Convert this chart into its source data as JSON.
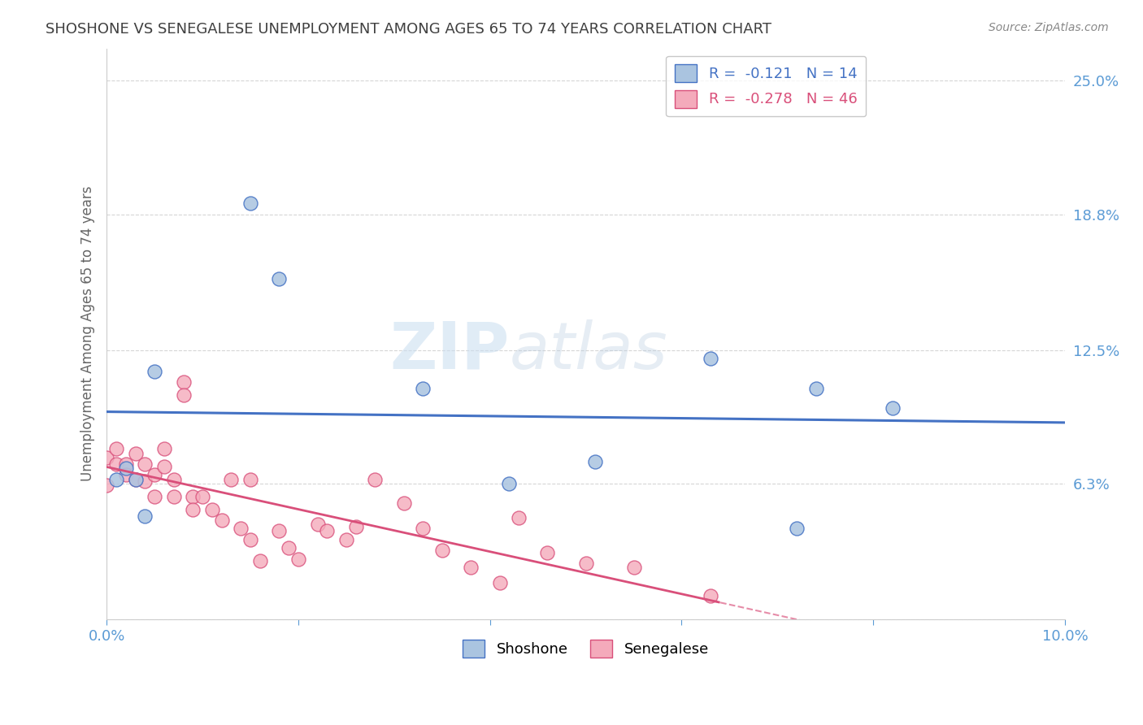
{
  "title": "SHOSHONE VS SENEGALESE UNEMPLOYMENT AMONG AGES 65 TO 74 YEARS CORRELATION CHART",
  "source": "Source: ZipAtlas.com",
  "ylabel": "Unemployment Among Ages 65 to 74 years",
  "xlim": [
    0.0,
    0.1
  ],
  "ylim": [
    0.0,
    0.265
  ],
  "xticks": [
    0.0,
    0.02,
    0.04,
    0.06,
    0.08,
    0.1
  ],
  "xticklabels": [
    "0.0%",
    "",
    "",
    "",
    "",
    "10.0%"
  ],
  "ytick_positions": [
    0.0,
    0.063,
    0.125,
    0.188,
    0.25
  ],
  "ytick_labels": [
    "",
    "6.3%",
    "12.5%",
    "18.8%",
    "25.0%"
  ],
  "shoshone_x": [
    0.002,
    0.015,
    0.018,
    0.005,
    0.042,
    0.033,
    0.063,
    0.074,
    0.082,
    0.051,
    0.003,
    0.001,
    0.004,
    0.072
  ],
  "shoshone_y": [
    0.07,
    0.193,
    0.158,
    0.115,
    0.063,
    0.107,
    0.121,
    0.107,
    0.098,
    0.073,
    0.065,
    0.065,
    0.048,
    0.042
  ],
  "senegalese_x": [
    0.0,
    0.001,
    0.001,
    0.002,
    0.002,
    0.003,
    0.003,
    0.004,
    0.004,
    0.005,
    0.005,
    0.006,
    0.006,
    0.007,
    0.007,
    0.008,
    0.008,
    0.009,
    0.009,
    0.01,
    0.011,
    0.012,
    0.013,
    0.014,
    0.015,
    0.015,
    0.016,
    0.018,
    0.019,
    0.02,
    0.022,
    0.023,
    0.025,
    0.026,
    0.028,
    0.031,
    0.033,
    0.035,
    0.038,
    0.041,
    0.043,
    0.046,
    0.05,
    0.055,
    0.063,
    0.0
  ],
  "senegalese_y": [
    0.075,
    0.079,
    0.072,
    0.072,
    0.067,
    0.065,
    0.077,
    0.072,
    0.064,
    0.067,
    0.057,
    0.079,
    0.071,
    0.065,
    0.057,
    0.11,
    0.104,
    0.057,
    0.051,
    0.057,
    0.051,
    0.046,
    0.065,
    0.042,
    0.037,
    0.065,
    0.027,
    0.041,
    0.033,
    0.028,
    0.044,
    0.041,
    0.037,
    0.043,
    0.065,
    0.054,
    0.042,
    0.032,
    0.024,
    0.017,
    0.047,
    0.031,
    0.026,
    0.024,
    0.011,
    0.062
  ],
  "shoshone_color": "#aac4e0",
  "senegalese_color": "#f4aabb",
  "shoshone_line_color": "#4472c4",
  "senegalese_line_color": "#d94f7a",
  "shoshone_R": -0.121,
  "shoshone_N": 14,
  "senegalese_R": -0.278,
  "senegalese_N": 46,
  "watermark_zip": "ZIP",
  "watermark_atlas": "atlas",
  "background_color": "#ffffff",
  "grid_color": "#cccccc",
  "axis_label_color": "#5b9bd5",
  "title_color": "#404040"
}
